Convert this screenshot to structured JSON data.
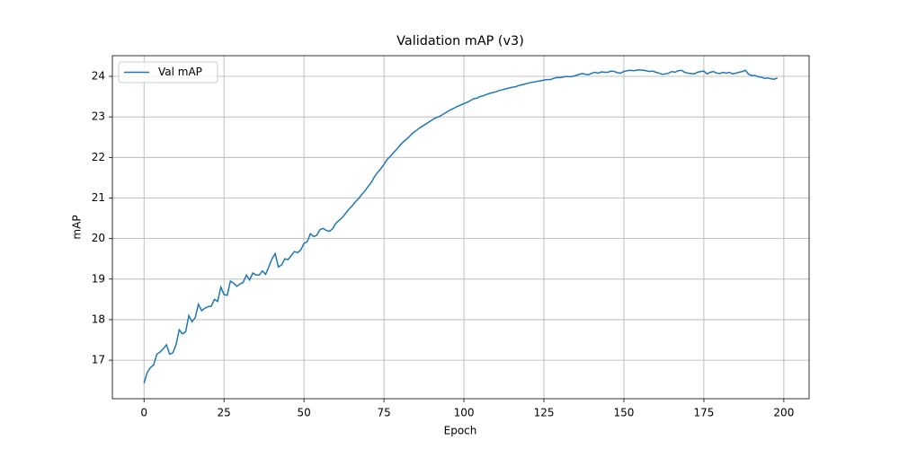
{
  "chart_data": {
    "type": "line",
    "title": "Validation mAP (v3)",
    "x_label": "Epoch",
    "y_label": "mAP",
    "x": [
      0,
      1,
      2,
      3,
      4,
      5,
      6,
      7,
      8,
      9,
      10,
      11,
      12,
      13,
      14,
      15,
      16,
      17,
      18,
      19,
      20,
      21,
      22,
      23,
      24,
      25,
      26,
      27,
      28,
      29,
      30,
      31,
      32,
      33,
      34,
      35,
      36,
      37,
      38,
      39,
      40,
      41,
      42,
      43,
      44,
      45,
      46,
      47,
      48,
      49,
      50,
      51,
      52,
      53,
      54,
      55,
      56,
      57,
      58,
      59,
      60,
      61,
      62,
      63,
      64,
      65,
      66,
      67,
      68,
      69,
      70,
      71,
      72,
      73,
      74,
      75,
      76,
      77,
      78,
      79,
      80,
      81,
      82,
      83,
      84,
      85,
      86,
      87,
      88,
      89,
      90,
      91,
      92,
      93,
      94,
      95,
      96,
      97,
      98,
      99,
      100,
      101,
      102,
      103,
      104,
      105,
      106,
      107,
      108,
      109,
      110,
      111,
      112,
      113,
      114,
      115,
      116,
      117,
      118,
      119,
      120,
      121,
      122,
      123,
      124,
      125,
      126,
      127,
      128,
      129,
      130,
      131,
      132,
      133,
      134,
      135,
      136,
      137,
      138,
      139,
      140,
      141,
      142,
      143,
      144,
      145,
      146,
      147,
      148,
      149,
      150,
      151,
      152,
      153,
      154,
      155,
      156,
      157,
      158,
      159,
      160,
      161,
      162,
      163,
      164,
      165,
      166,
      167,
      168,
      169,
      170,
      171,
      172,
      173,
      174,
      175,
      176,
      177,
      178,
      179,
      180,
      181,
      182,
      183,
      184,
      185,
      186,
      187,
      188,
      189,
      190,
      191,
      192,
      193,
      194,
      195,
      196,
      197,
      198
    ],
    "series": [
      {
        "name": "Val mAP",
        "color": "#1f77b4",
        "values": [
          16.43,
          16.7,
          16.82,
          16.88,
          17.15,
          17.2,
          17.28,
          17.38,
          17.15,
          17.18,
          17.38,
          17.75,
          17.65,
          17.7,
          18.1,
          17.95,
          18.05,
          18.38,
          18.22,
          18.28,
          18.32,
          18.33,
          18.5,
          18.45,
          18.8,
          18.62,
          18.6,
          18.95,
          18.9,
          18.82,
          18.88,
          18.92,
          19.1,
          18.98,
          19.15,
          19.1,
          19.1,
          19.2,
          19.12,
          19.3,
          19.5,
          19.63,
          19.3,
          19.35,
          19.5,
          19.48,
          19.58,
          19.68,
          19.65,
          19.72,
          19.88,
          19.92,
          20.12,
          20.05,
          20.08,
          20.22,
          20.25,
          20.2,
          20.18,
          20.25,
          20.38,
          20.45,
          20.52,
          20.62,
          20.72,
          20.8,
          20.9,
          20.98,
          21.08,
          21.17,
          21.28,
          21.38,
          21.52,
          21.63,
          21.72,
          21.83,
          21.95,
          22.03,
          22.12,
          22.2,
          22.3,
          22.38,
          22.45,
          22.52,
          22.6,
          22.66,
          22.72,
          22.77,
          22.82,
          22.87,
          22.92,
          22.97,
          23.0,
          23.04,
          23.09,
          23.14,
          23.18,
          23.22,
          23.26,
          23.29,
          23.33,
          23.36,
          23.4,
          23.45,
          23.46,
          23.5,
          23.52,
          23.55,
          23.58,
          23.6,
          23.62,
          23.65,
          23.67,
          23.69,
          23.71,
          23.73,
          23.74,
          23.77,
          23.79,
          23.81,
          23.83,
          23.85,
          23.86,
          23.88,
          23.89,
          23.91,
          23.92,
          23.92,
          23.95,
          23.97,
          23.97,
          23.98,
          24.0,
          23.99,
          24.0,
          24.02,
          24.05,
          24.07,
          24.05,
          24.04,
          24.08,
          24.1,
          24.08,
          24.11,
          24.1,
          24.1,
          24.13,
          24.12,
          24.09,
          24.08,
          24.12,
          24.14,
          24.15,
          24.14,
          24.15,
          24.16,
          24.15,
          24.14,
          24.12,
          24.13,
          24.1,
          24.08,
          24.05,
          24.06,
          24.08,
          24.12,
          24.1,
          24.14,
          24.15,
          24.1,
          24.08,
          24.07,
          24.06,
          24.1,
          24.12,
          24.13,
          24.06,
          24.1,
          24.12,
          24.08,
          24.07,
          24.1,
          24.08,
          24.1,
          24.06,
          24.08,
          24.1,
          24.12,
          24.15,
          24.05,
          24.02,
          24.02,
          23.99,
          23.98,
          23.95,
          23.96,
          23.94,
          23.93,
          23.96
        ]
      }
    ],
    "xlim": [
      -9.9,
      207.9
    ],
    "xticks": [
      0,
      25,
      50,
      75,
      100,
      125,
      150,
      175,
      200
    ],
    "ylim": [
      16.05,
      24.51
    ],
    "yticks": [
      17,
      18,
      19,
      20,
      21,
      22,
      23,
      24
    ],
    "grid": true,
    "legend": "upper left"
  }
}
